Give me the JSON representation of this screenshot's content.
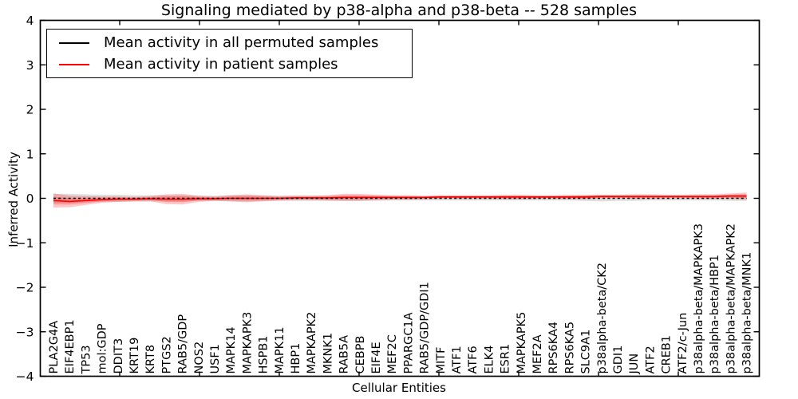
{
  "title": "Signaling mediated by p38-alpha and p38-beta -- 528 samples",
  "legend": {
    "items": [
      {
        "label": "Mean activity in all permuted samples",
        "color": "#000000"
      },
      {
        "label": "Mean activity in patient samples",
        "color": "#ff0000"
      }
    ]
  },
  "chart_data": {
    "type": "line",
    "title": "Signaling mediated by p38-alpha and p38-beta -- 528 samples",
    "xlabel": "Cellular Entities",
    "ylabel": "Inferred Activity",
    "ylim": [
      -4,
      4
    ],
    "yticks": [
      -4,
      -3,
      -2,
      -1,
      0,
      1,
      2,
      3,
      4
    ],
    "grid": false,
    "legend_position": "upper left",
    "categories": [
      "PLA2G4A",
      "EIF4EBP1",
      "TP53",
      "mol:GDP",
      "DDIT3",
      "KRT19",
      "KRT8",
      "PTGS2",
      "RAB5/GDP",
      "NOS2",
      "USF1",
      "MAPK14",
      "MAPKAPK3",
      "HSPB1",
      "MAPK11",
      "HBP1",
      "MAPKAPK2",
      "MKNK1",
      "RAB5A",
      "CEBPB",
      "EIF4E",
      "MEF2C",
      "PPARGC1A",
      "RAB5/GDP/GDI1",
      "MITF",
      "ATF1",
      "ATF6",
      "ELK4",
      "ESR1",
      "MAPKAPK5",
      "MEF2A",
      "RPS6KA4",
      "RPS6KA5",
      "SLC9A1",
      "p38alpha-beta/CK2",
      "GDI1",
      "JUN",
      "ATF2",
      "CREB1",
      "ATF2/c-Jun",
      "p38alpha-beta/MAPKAPK3",
      "p38alpha-beta/HBP1",
      "p38alpha-beta/MAPKAPK2",
      "p38alpha-beta/MNK1"
    ],
    "series": [
      {
        "name": "Mean activity in all permuted samples",
        "color": "#000000",
        "style": "dashed",
        "values": [
          0,
          0,
          0,
          0,
          0,
          0,
          0,
          0,
          0,
          0,
          0,
          0,
          0,
          0,
          0,
          0,
          0,
          0,
          0,
          0,
          0,
          0,
          0,
          0,
          0,
          0,
          0,
          0,
          0,
          0,
          0,
          0,
          0,
          0,
          0,
          0,
          0,
          0,
          0,
          0,
          0,
          0,
          0,
          0
        ]
      },
      {
        "name": "Mean activity in patient samples",
        "color": "#ff0000",
        "style": "solid",
        "values": [
          -0.05,
          -0.07,
          -0.05,
          -0.03,
          -0.02,
          -0.02,
          -0.01,
          -0.02,
          -0.02,
          -0.01,
          -0.01,
          0,
          0,
          0,
          0,
          0.01,
          0.01,
          0.01,
          0.02,
          0.02,
          0.02,
          0.02,
          0.02,
          0.02,
          0.03,
          0.03,
          0.03,
          0.03,
          0.03,
          0.03,
          0.03,
          0.03,
          0.03,
          0.03,
          0.04,
          0.04,
          0.04,
          0.04,
          0.04,
          0.04,
          0.04,
          0.04,
          0.05,
          0.05
        ]
      }
    ],
    "bands": [
      {
        "series": "Mean activity in all permuted samples",
        "color": "rgba(0,0,0,0.13)",
        "half_widths": [
          0.1,
          0.1,
          0.09,
          0.08,
          0.08,
          0.07,
          0.07,
          0.07,
          0.07,
          0.06,
          0.06,
          0.07,
          0.07,
          0.06,
          0.06,
          0.06,
          0.06,
          0.06,
          0.06,
          0.06,
          0.06,
          0.05,
          0.05,
          0.05,
          0.05,
          0.05,
          0.05,
          0.05,
          0.05,
          0.05,
          0.05,
          0.05,
          0.05,
          0.06,
          0.07,
          0.06,
          0.06,
          0.05,
          0.05,
          0.05,
          0.05,
          0.05,
          0.06,
          0.06
        ]
      },
      {
        "series": "Mean activity in patient samples",
        "color": "rgba(255,0,0,0.22)",
        "half_widths": [
          0.16,
          0.13,
          0.1,
          0.07,
          0.06,
          0.05,
          0.06,
          0.11,
          0.12,
          0.07,
          0.05,
          0.07,
          0.09,
          0.07,
          0.05,
          0.05,
          0.05,
          0.06,
          0.08,
          0.08,
          0.06,
          0.05,
          0.05,
          0.04,
          0.04,
          0.04,
          0.04,
          0.04,
          0.05,
          0.05,
          0.04,
          0.04,
          0.05,
          0.05,
          0.04,
          0.04,
          0.05,
          0.05,
          0.04,
          0.04,
          0.05,
          0.05,
          0.06,
          0.08
        ]
      }
    ]
  }
}
